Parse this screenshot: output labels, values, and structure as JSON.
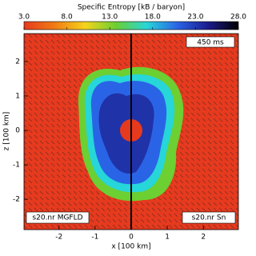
{
  "chart_data": {
    "type": "image",
    "title": "Specific Entropy [kB / baryon]",
    "colorbar": {
      "clim": [
        3,
        28
      ],
      "cticks": [
        {
          "value": 3,
          "label": "3.0"
        },
        {
          "value": 8,
          "label": "8.0"
        },
        {
          "value": 13,
          "label": "13.0"
        },
        {
          "value": 18,
          "label": "18.0"
        },
        {
          "value": 23,
          "label": "23.0"
        },
        {
          "value": 28,
          "label": "28.0"
        }
      ],
      "colors": [
        "#e63a1e",
        "#f07c14",
        "#f5d41c",
        "#6ccf32",
        "#27d6d8",
        "#2a64e6",
        "#1c1c8c",
        "#000000"
      ]
    },
    "xlabel": "x [100 km]",
    "ylabel": "z [100 km]",
    "xlim": [
      -2.97,
      2.97
    ],
    "ylim": [
      -2.88,
      2.81
    ],
    "xticks": [
      -2,
      -1,
      0,
      1,
      2
    ],
    "yticks": [
      -2,
      -1,
      0,
      1,
      2
    ],
    "annotations": [
      "450 ms",
      "s20.nr MGFLD",
      "s20.nr Sn"
    ]
  }
}
